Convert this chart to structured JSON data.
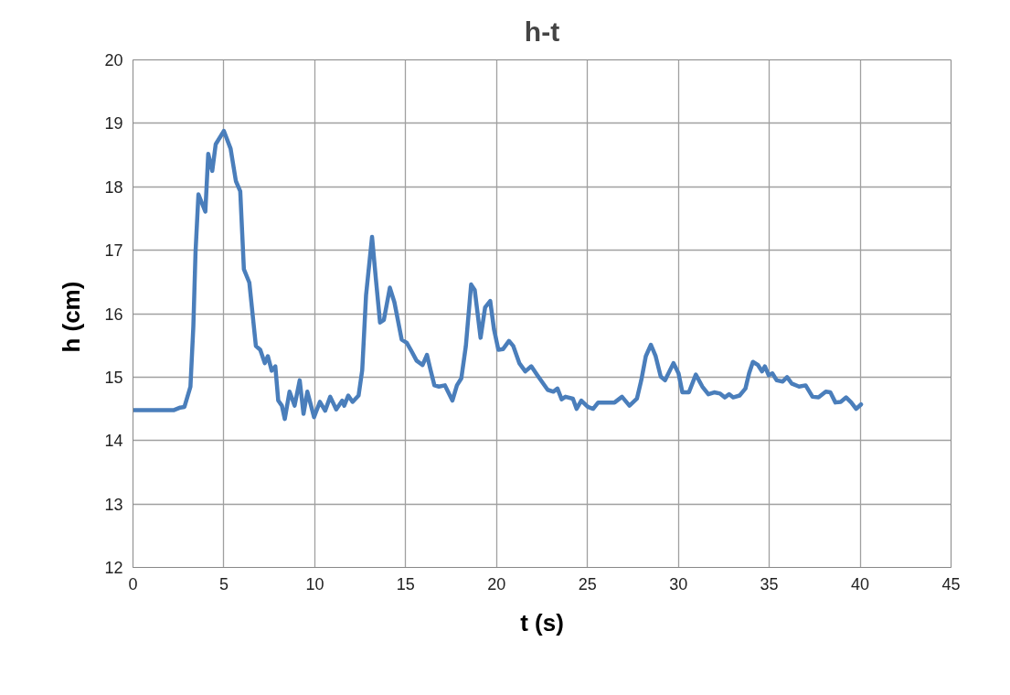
{
  "chart_data": {
    "type": "line",
    "title": "h-t",
    "xlabel": "t (s)",
    "ylabel": "h  (cm)",
    "xlim": [
      0,
      45
    ],
    "xticks": [
      0,
      5,
      10,
      15,
      20,
      25,
      30,
      35,
      40,
      45
    ],
    "ylim": [
      12,
      20
    ],
    "yticks": [
      12,
      13,
      14,
      15,
      16,
      17,
      18,
      19,
      20
    ],
    "grid": true,
    "marker": "none",
    "line_style": "solid",
    "series": [
      {
        "color": "#4a7ebb",
        "x": [
          0,
          1,
          2.26,
          2.6,
          2.83,
          3.16,
          3.32,
          3.44,
          3.6,
          3.98,
          4.14,
          4.36,
          4.55,
          5.0,
          5.37,
          5.66,
          5.9,
          6.1,
          6.4,
          6.76,
          7.0,
          7.25,
          7.42,
          7.63,
          7.83,
          7.99,
          8.19,
          8.35,
          8.61,
          8.89,
          9.17,
          9.38,
          9.59,
          9.96,
          10.28,
          10.57,
          10.85,
          11.18,
          11.51,
          11.62,
          11.84,
          12.08,
          12.41,
          12.61,
          12.82,
          13.15,
          13.36,
          13.59,
          13.8,
          14.13,
          14.38,
          14.78,
          15.06,
          15.28,
          15.6,
          15.93,
          16.17,
          16.37,
          16.58,
          16.83,
          17.16,
          17.57,
          17.82,
          18.06,
          18.31,
          18.6,
          18.8,
          19.12,
          19.37,
          19.65,
          19.86,
          20.1,
          20.35,
          20.68,
          20.92,
          21.25,
          21.58,
          21.91,
          22.24,
          22.56,
          22.81,
          23.13,
          23.35,
          23.58,
          23.79,
          24.2,
          24.4,
          24.66,
          25.02,
          25.31,
          25.59,
          26.0,
          26.49,
          26.9,
          27.31,
          27.72,
          27.96,
          28.21,
          28.49,
          28.75,
          29.03,
          29.27,
          29.73,
          30.01,
          30.22,
          30.58,
          30.96,
          31.32,
          31.65,
          31.97,
          32.3,
          32.55,
          32.79,
          33.01,
          33.37,
          33.69,
          33.89,
          34.1,
          34.38,
          34.6,
          34.76,
          34.97,
          35.17,
          35.41,
          35.74,
          35.98,
          36.23,
          36.64,
          37.0,
          37.38,
          37.71,
          38.11,
          38.36,
          38.64,
          38.93,
          39.23,
          39.51,
          39.78,
          40.05
        ],
        "values": [
          14.48,
          14.48,
          14.48,
          14.52,
          14.53,
          14.85,
          15.8,
          16.97,
          17.88,
          17.61,
          18.52,
          18.25,
          18.67,
          18.88,
          18.6,
          18.09,
          17.93,
          16.7,
          16.49,
          15.49,
          15.43,
          15.22,
          15.33,
          15.1,
          15.17,
          14.63,
          14.55,
          14.34,
          14.77,
          14.55,
          14.95,
          14.42,
          14.77,
          14.37,
          14.61,
          14.47,
          14.69,
          14.49,
          14.63,
          14.55,
          14.71,
          14.61,
          14.71,
          15.11,
          16.29,
          17.21,
          16.55,
          15.86,
          15.9,
          16.41,
          16.18,
          15.59,
          15.54,
          15.43,
          15.26,
          15.19,
          15.35,
          15.11,
          14.87,
          14.85,
          14.87,
          14.63,
          14.87,
          14.98,
          15.49,
          16.46,
          16.37,
          15.62,
          16.1,
          16.2,
          15.75,
          15.43,
          15.44,
          15.57,
          15.49,
          15.22,
          15.09,
          15.17,
          15.03,
          14.9,
          14.8,
          14.77,
          14.82,
          14.65,
          14.69,
          14.66,
          14.5,
          14.63,
          14.53,
          14.5,
          14.6,
          14.6,
          14.6,
          14.69,
          14.55,
          14.66,
          14.95,
          15.33,
          15.51,
          15.33,
          15.01,
          14.95,
          15.22,
          15.06,
          14.76,
          14.76,
          15.04,
          14.85,
          14.73,
          14.76,
          14.74,
          14.68,
          14.73,
          14.68,
          14.71,
          14.82,
          15.06,
          15.24,
          15.19,
          15.09,
          15.17,
          15.03,
          15.06,
          14.95,
          14.93,
          15.0,
          14.9,
          14.85,
          14.87,
          14.69,
          14.68,
          14.77,
          14.76,
          14.6,
          14.61,
          14.68,
          14.6,
          14.5,
          14.57
        ]
      }
    ]
  }
}
